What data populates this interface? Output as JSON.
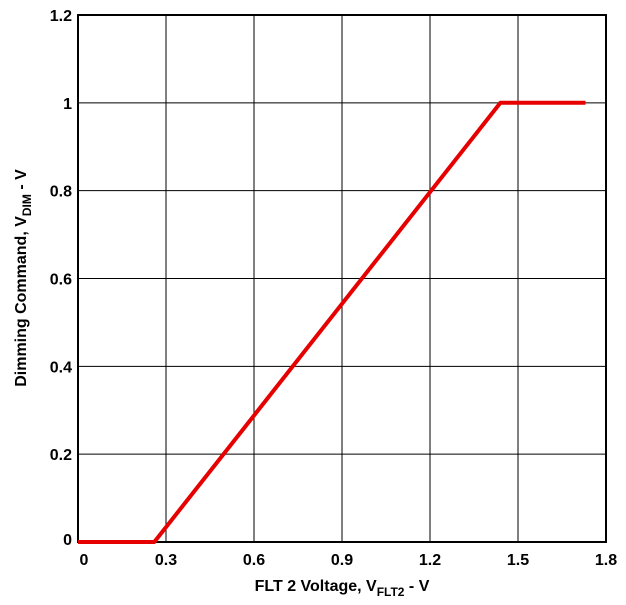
{
  "chart_data": {
    "type": "line",
    "xlabel": {
      "main": "FLT 2 Voltage, V",
      "sub": "FLT2",
      "suffix": " - V"
    },
    "ylabel": {
      "main": "Dimming Command, V",
      "sub": "DIM",
      "suffix": " - V"
    },
    "xlim": [
      0,
      1.8
    ],
    "ylim": [
      0,
      1.2
    ],
    "x_ticks": [
      0,
      0.3,
      0.6,
      0.9,
      1.2,
      1.5,
      1.8
    ],
    "x_tick_labels": [
      "0",
      "0.3",
      "0.6",
      "0.9",
      "1.2",
      "1.5",
      "1.8"
    ],
    "y_ticks": [
      0,
      0.2,
      0.4,
      0.6,
      0.8,
      1,
      1.2
    ],
    "y_tick_labels": [
      "0",
      "0.2",
      "0.4",
      "0.6",
      "0.8",
      "1",
      "1.2"
    ],
    "grid": true,
    "series": [
      {
        "color": "#e60000",
        "points": [
          {
            "x": 0,
            "y": 0
          },
          {
            "x": 0.26,
            "y": 0
          },
          {
            "x": 1.44,
            "y": 1
          },
          {
            "x": 1.73,
            "y": 1
          }
        ]
      }
    ]
  }
}
